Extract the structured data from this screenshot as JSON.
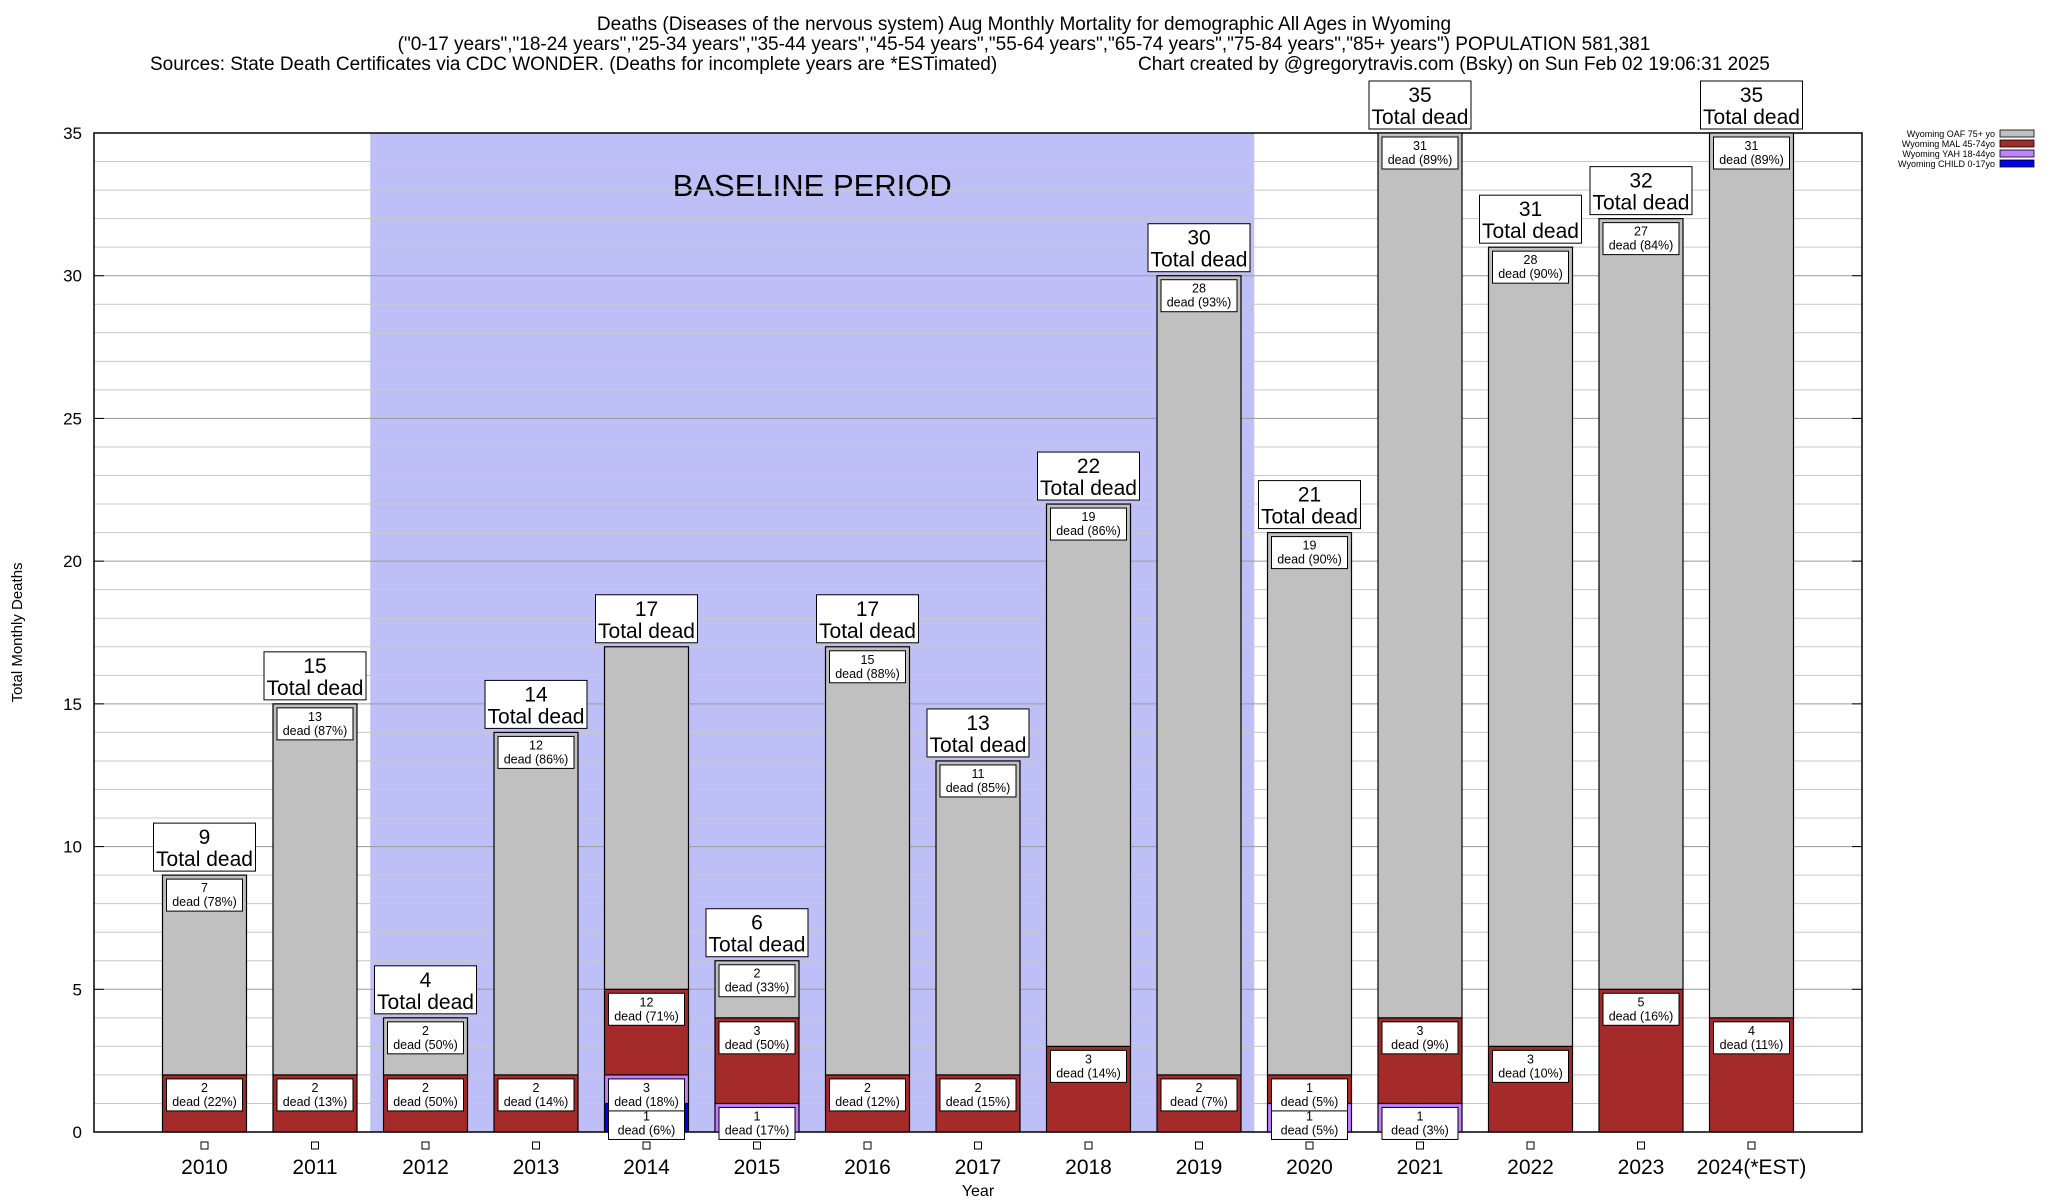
{
  "header": {
    "title_line1": "Deaths (Diseases of the nervous system) Aug Monthly Mortality for demographic All Ages in Wyoming",
    "title_line2": "(\"0-17 years\",\"18-24 years\",\"25-34 years\",\"35-44 years\",\"45-54 years\",\"55-64 years\",\"65-74 years\",\"75-84 years\",\"85+ years\") POPULATION 581,381",
    "sources": "Sources: State Death Certificates via CDC WONDER. (Deaths for incomplete years are *ESTimated)",
    "credit": "Chart created by @gregorytravis.com (Bsky) on Sun Feb 02 19:06:31 2025"
  },
  "colors": {
    "oaf": "#c0c0c0",
    "mal": "#a52a2a",
    "yah": "#c080ff",
    "child": "#0000ee",
    "baseline": "#bfbff8"
  },
  "chart_data": {
    "type": "bar",
    "stacked": true,
    "xlabel": "Year",
    "ylabel": "Total Monthly Deaths",
    "ylim": [
      0,
      35
    ],
    "yticks": [
      0,
      5,
      10,
      15,
      20,
      25,
      30,
      35
    ],
    "categories": [
      "2010",
      "2011",
      "2012",
      "2013",
      "2014",
      "2015",
      "2016",
      "2017",
      "2018",
      "2019",
      "2020",
      "2021",
      "2022",
      "2023",
      "2024(*EST)"
    ],
    "series": [
      {
        "name": "Wyoming CHILD 0-17yo",
        "values": [
          0,
          0,
          0,
          0,
          1,
          0,
          0,
          0,
          0,
          0,
          0,
          0,
          0,
          0,
          0
        ]
      },
      {
        "name": "Wyoming YAH 18-44yo",
        "values": [
          0,
          0,
          0,
          0,
          1,
          1,
          0,
          0,
          0,
          0,
          1,
          1,
          0,
          0,
          0
        ]
      },
      {
        "name": "Wyoming MAL 45-74yo",
        "values": [
          2,
          2,
          2,
          2,
          3,
          3,
          2,
          2,
          3,
          2,
          1,
          3,
          3,
          5,
          4
        ]
      },
      {
        "name": "Wyoming OAF 75+ yo",
        "values": [
          7,
          13,
          2,
          12,
          12,
          2,
          15,
          11,
          19,
          28,
          19,
          31,
          28,
          27,
          31
        ]
      }
    ],
    "totals": [
      9,
      15,
      4,
      14,
      17,
      6,
      17,
      13,
      22,
      30,
      21,
      35,
      31,
      32,
      35
    ],
    "segment_labels": [
      [
        {
          "n": "2",
          "p": "dead (22%)"
        },
        {
          "n": "7",
          "p": "dead (78%)"
        }
      ],
      [
        {
          "n": "2",
          "p": "dead (13%)"
        },
        {
          "n": "13",
          "p": "dead (87%)"
        }
      ],
      [
        {
          "n": "2",
          "p": "dead (50%)"
        },
        {
          "n": "2",
          "p": "dead (50%)"
        }
      ],
      [
        {
          "n": "2",
          "p": "dead (14%)"
        },
        {
          "n": "12",
          "p": "dead (86%)"
        }
      ],
      [
        {
          "n": "1",
          "p": "dead (6%)"
        },
        {
          "n": "3",
          "p": "dead (18%)"
        },
        {
          "n": "12",
          "p": "dead (71%)"
        }
      ],
      [
        {
          "n": "1",
          "p": "dead (17%)"
        },
        {
          "n": "3",
          "p": "dead (50%)"
        },
        {
          "n": "2",
          "p": "dead (33%)"
        }
      ],
      [
        {
          "n": "2",
          "p": "dead (12%)"
        },
        {
          "n": "15",
          "p": "dead (88%)"
        }
      ],
      [
        {
          "n": "2",
          "p": "dead (15%)"
        },
        {
          "n": "11",
          "p": "dead (85%)"
        }
      ],
      [
        {
          "n": "3",
          "p": "dead (14%)"
        },
        {
          "n": "19",
          "p": "dead (86%)"
        }
      ],
      [
        {
          "n": "2",
          "p": "dead (7%)"
        },
        {
          "n": "28",
          "p": "dead (93%)"
        }
      ],
      [
        {
          "n": "1",
          "p": "dead (5%)"
        },
        {
          "n": "1",
          "p": "dead (5%)"
        },
        {
          "n": "19",
          "p": "dead (90%)"
        }
      ],
      [
        {
          "n": "1",
          "p": "dead (3%)"
        },
        {
          "n": "3",
          "p": "dead (9%)"
        },
        {
          "n": "31",
          "p": "dead (89%)"
        }
      ],
      [
        {
          "n": "3",
          "p": "dead (10%)"
        },
        {
          "n": "28",
          "p": "dead (90%)"
        }
      ],
      [
        {
          "n": "5",
          "p": "dead (16%)"
        },
        {
          "n": "27",
          "p": "dead (84%)"
        }
      ],
      [
        {
          "n": "4",
          "p": "dead (11%)"
        },
        {
          "n": "31",
          "p": "dead (89%)"
        }
      ]
    ],
    "total_suffix": "Total dead",
    "baseline": {
      "label": "BASELINE PERIOD",
      "from": "2012",
      "to": "2019"
    },
    "legend": [
      "Wyoming OAF 75+ yo",
      "Wyoming MAL 45-74yo",
      "Wyoming YAH 18-44yo",
      "Wyoming CHILD 0-17yo"
    ],
    "legend_position": "top-right",
    "grid": true
  }
}
